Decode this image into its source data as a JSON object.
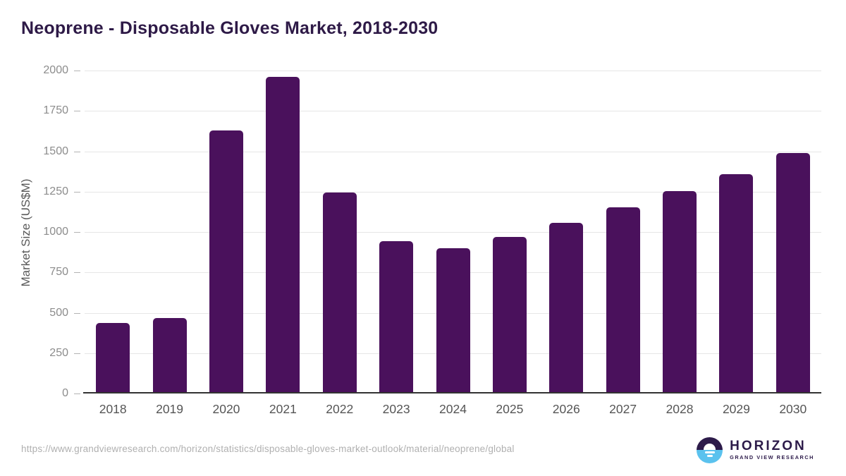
{
  "chart_data": {
    "type": "bar",
    "title": "Neoprene - Disposable Gloves Market, 2018-2030",
    "ylabel": "Market Size (US$M)",
    "xlabel": "",
    "categories": [
      "2018",
      "2019",
      "2020",
      "2021",
      "2022",
      "2023",
      "2024",
      "2025",
      "2026",
      "2027",
      "2028",
      "2029",
      "2030"
    ],
    "values": [
      430,
      460,
      1620,
      1950,
      1235,
      935,
      890,
      960,
      1050,
      1145,
      1245,
      1350,
      1480
    ],
    "ylim": [
      0,
      2000
    ],
    "ytick_step": 250,
    "grid": "horizontal",
    "legend": "none",
    "bar_color": "#4A115C",
    "title_color": "#2E1A47",
    "axis_line_color": "#333333",
    "gridline_color": "#E6E6E6"
  },
  "footer": {
    "source_url": "https://www.grandviewresearch.com/horizon/statistics/disposable-gloves-market-outlook/material/neoprene/global",
    "logo": {
      "title": "HORIZON",
      "subtitle": "GRAND VIEW RESEARCH",
      "text_color": "#2D1B4A",
      "mark_top_color": "#2D1B4A",
      "mark_bottom_color": "#5BC2EE"
    }
  }
}
